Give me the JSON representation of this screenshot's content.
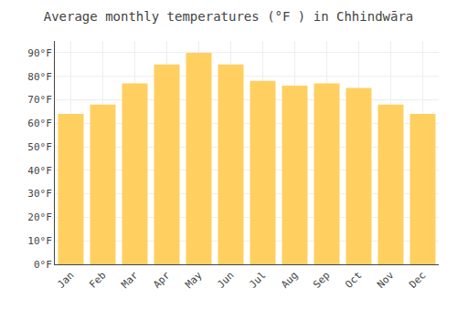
{
  "chart_data": {
    "type": "bar",
    "title": "Average monthly temperatures (°F ) in Chhindwāra",
    "categories": [
      "Jan",
      "Feb",
      "Mar",
      "Apr",
      "May",
      "Jun",
      "Jul",
      "Aug",
      "Sep",
      "Oct",
      "Nov",
      "Dec"
    ],
    "values": [
      64,
      68,
      77,
      85,
      90,
      85,
      78,
      76,
      77,
      75,
      68,
      64
    ],
    "color": "#FFD060",
    "ylim": [
      0,
      95
    ],
    "yticks": [
      {
        "value": 0,
        "label": "0°F"
      },
      {
        "value": 10,
        "label": "10°F"
      },
      {
        "value": 20,
        "label": "20°F"
      },
      {
        "value": 30,
        "label": "30°F"
      },
      {
        "value": 40,
        "label": "40°F"
      },
      {
        "value": 50,
        "label": "50°F"
      },
      {
        "value": 60,
        "label": "60°F"
      },
      {
        "value": 70,
        "label": "70°F"
      },
      {
        "value": 80,
        "label": "80°F"
      },
      {
        "value": 90,
        "label": "90°F"
      }
    ],
    "grid": true
  }
}
